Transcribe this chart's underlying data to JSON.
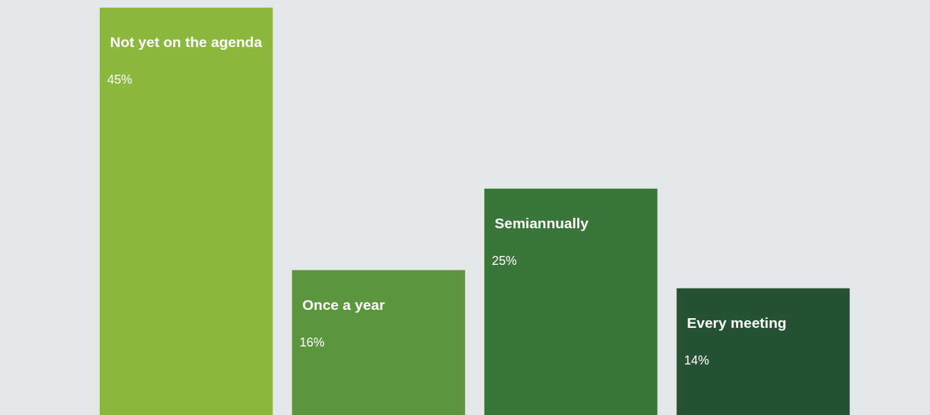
{
  "chart_data": {
    "type": "bar",
    "categories": [
      "Not yet on the agenda",
      "Once a year",
      "Semiannually",
      "Every meeting"
    ],
    "values": [
      45,
      16,
      25,
      14
    ],
    "colors": [
      "#8db83e",
      "#5c9740",
      "#3a7639",
      "#255233"
    ],
    "value_labels": [
      "45%",
      "16%",
      "25%",
      "14%"
    ]
  }
}
